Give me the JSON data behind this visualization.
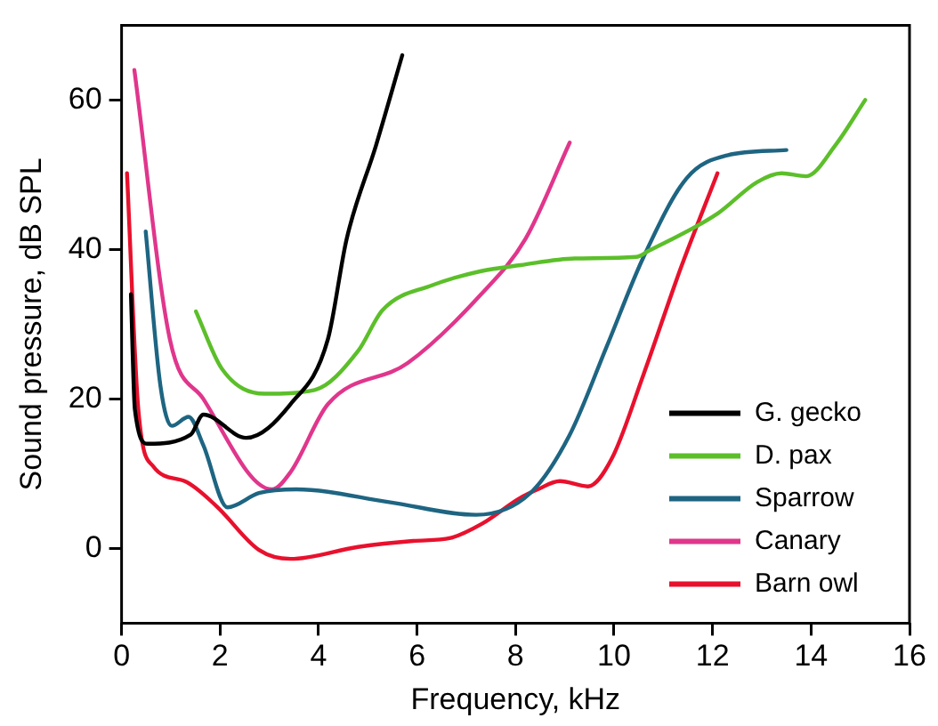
{
  "chart_data": {
    "type": "line",
    "xlabel": "Frequency, kHz",
    "ylabel": "Sound pressure, dB SPL",
    "xlim": [
      0,
      16
    ],
    "xticks": [
      0,
      2,
      4,
      6,
      8,
      10,
      12,
      14,
      16
    ],
    "ylim": [
      -10,
      70
    ],
    "yticks": [
      0,
      20,
      40,
      60
    ],
    "grid": false,
    "legend": "bottom right",
    "marker": "none",
    "line_style": "solid",
    "series": [
      {
        "name": "G. gecko",
        "color": "#000000",
        "x": [
          0.19,
          0.27,
          0.53,
          1.4,
          1.66,
          2.53,
          3.43,
          4.19,
          4.57,
          5.17,
          5.7
        ],
        "values": [
          34,
          18.6,
          14,
          15.2,
          17.9,
          14.8,
          19.3,
          28,
          41.4,
          54,
          66
        ]
      },
      {
        "name": "D. pax",
        "color": "#5cbf2a",
        "x": [
          1.51,
          2.04,
          2.9,
          3.92,
          4.8,
          5.3,
          6.3,
          7.3,
          8.1,
          9.2,
          10.45,
          10.7,
          12.1,
          12.9,
          13.4,
          13.9,
          14.5,
          15.1
        ],
        "values": [
          31.7,
          24,
          20.7,
          21.2,
          26.4,
          31.9,
          35.2,
          37.1,
          37.9,
          38.8,
          39,
          39.8,
          44.8,
          49,
          50.2,
          49.8,
          54,
          60
        ]
      },
      {
        "name": "Sparrow",
        "color": "#1e6582",
        "x": [
          0.49,
          0.79,
          1.02,
          1.36,
          1.66,
          2.15,
          2.79,
          3.55,
          5.43,
          7.2,
          8.3,
          9.1,
          9.85,
          10.6,
          11.47,
          12.3,
          13.5
        ],
        "values": [
          42.4,
          21.7,
          16.4,
          17.6,
          13.8,
          5.5,
          7.4,
          7.9,
          6.2,
          4.5,
          7.4,
          15.2,
          27,
          39,
          49.5,
          52.6,
          53.3
        ]
      },
      {
        "name": "Canary",
        "color": "#e0368c",
        "x": [
          0.26,
          0.98,
          1.66,
          3.05,
          3.43,
          4.19,
          5.81,
          7.3,
          8.2,
          9.1
        ],
        "values": [
          64,
          28,
          20,
          7.9,
          10.2,
          19.3,
          24.8,
          34,
          41.4,
          54.3
        ]
      },
      {
        "name": "Barn owl",
        "color": "#e8112d",
        "x": [
          0.11,
          0.34,
          0.64,
          1.28,
          1.92,
          2.79,
          3.43,
          4.8,
          5.92,
          6.68,
          7.32,
          8.08,
          8.45,
          8.9,
          9.47,
          9.96,
          10.6,
          11.36,
          12.1
        ],
        "values": [
          50.2,
          18.6,
          11,
          9,
          5.7,
          -0.2,
          -1.4,
          0.2,
          1,
          1.4,
          3.3,
          6.7,
          7.9,
          9,
          8.3,
          12.1,
          23.3,
          37.6,
          50.2
        ]
      }
    ]
  }
}
